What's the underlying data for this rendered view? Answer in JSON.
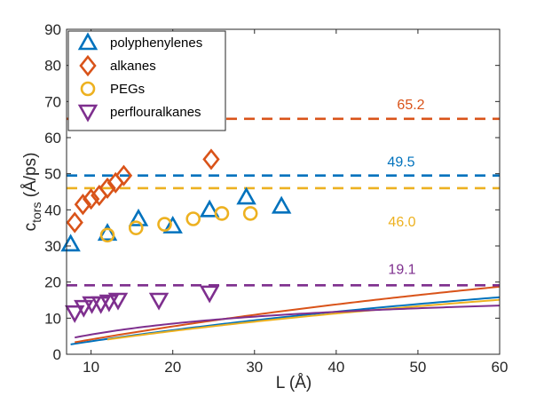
{
  "chart_data": {
    "type": "scatter",
    "title": "",
    "xlabel": "L (Å)",
    "ylabel_main": "c",
    "ylabel_sub": "tors",
    "ylabel_unit": " (Å/ps)",
    "xlim": [
      7,
      60
    ],
    "ylim": [
      0,
      90
    ],
    "xticks": [
      10,
      20,
      30,
      40,
      50,
      60
    ],
    "yticks": [
      0,
      10,
      20,
      30,
      40,
      50,
      60,
      70,
      80,
      90
    ],
    "grid": false,
    "legend_position": "top-left",
    "series": [
      {
        "name": "polyphenylenes",
        "marker": "triangle-up",
        "color": "#0072BD",
        "x": [
          7.5,
          12,
          15.8,
          20,
          24.5,
          29,
          33.3
        ],
        "y": [
          30.5,
          33.5,
          37.5,
          35.5,
          40,
          43.5,
          41
        ],
        "fit": {
          "a": 49.5,
          "b": 128
        },
        "asymptote": 49.5,
        "asymptote_label": "49.5"
      },
      {
        "name": "alkanes",
        "marker": "diamond",
        "color": "#D95319",
        "x": [
          8,
          9,
          10,
          11,
          12,
          13,
          14,
          24.7
        ],
        "y": [
          36.5,
          41.5,
          43,
          44,
          46,
          47.5,
          49.5,
          54
        ],
        "fit": {
          "a": 65.2,
          "b": 149
        },
        "asymptote": 65.2,
        "asymptote_label": "65.2"
      },
      {
        "name": "PEGs",
        "marker": "circle",
        "color": "#EDB120",
        "x": [
          12,
          15.5,
          19,
          22.5,
          26,
          29.5
        ],
        "y": [
          33,
          35,
          36,
          37.5,
          39,
          39
        ],
        "fit": {
          "a": 46.0,
          "b": 123
        },
        "asymptote": 46.0,
        "asymptote_label": "46.0"
      },
      {
        "name": "perflouralkanes",
        "marker": "triangle-down",
        "color": "#7E2F8E",
        "x": [
          8,
          9.1,
          10.1,
          11.2,
          12.2,
          13.3,
          18.3,
          24.5
        ],
        "y": [
          11.5,
          13,
          14,
          14,
          14.5,
          15,
          15,
          17
        ],
        "fit": {
          "a": 19.1,
          "b": 25
        },
        "asymptote": 19.1,
        "asymptote_label": "19.1"
      }
    ]
  }
}
